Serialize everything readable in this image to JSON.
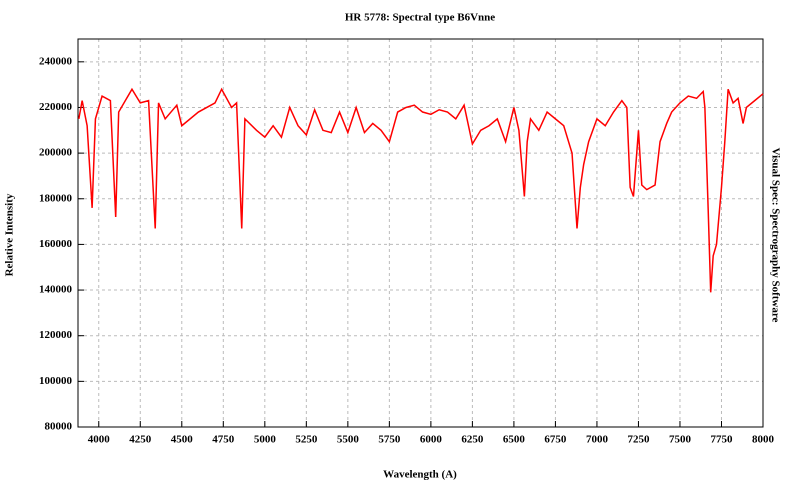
{
  "chart_data": {
    "type": "line",
    "title": "HR 5778: Spectral type B6Vnne",
    "x_label": "Wavelength (A)",
    "y_label": "Relative Intensity",
    "annotation": "Visual Spec: Spectrography Software",
    "xlim": [
      3875,
      8000
    ],
    "ylim": [
      80000,
      250000
    ],
    "xticks": [
      4000,
      4250,
      4500,
      4750,
      5000,
      5250,
      5500,
      5750,
      6000,
      6250,
      6500,
      6750,
      7000,
      7250,
      7500,
      7750,
      8000
    ],
    "yticks": [
      80000,
      100000,
      120000,
      140000,
      160000,
      180000,
      200000,
      220000,
      240000
    ],
    "grid": true,
    "x": [
      3880,
      3900,
      3930,
      3960,
      3980,
      4020,
      4070,
      4102,
      4120,
      4200,
      4250,
      4300,
      4340,
      4360,
      4400,
      4470,
      4500,
      4600,
      4700,
      4740,
      4800,
      4830,
      4861,
      4880,
      4950,
      5000,
      5050,
      5100,
      5150,
      5200,
      5250,
      5300,
      5350,
      5400,
      5450,
      5500,
      5550,
      5600,
      5650,
      5700,
      5750,
      5800,
      5850,
      5900,
      5950,
      6000,
      6050,
      6100,
      6150,
      6200,
      6250,
      6300,
      6350,
      6400,
      6450,
      6500,
      6530,
      6563,
      6580,
      6600,
      6650,
      6700,
      6750,
      6800,
      6850,
      6880,
      6900,
      6920,
      6950,
      7000,
      7050,
      7100,
      7150,
      7180,
      7200,
      7220,
      7250,
      7270,
      7300,
      7350,
      7380,
      7420,
      7450,
      7500,
      7550,
      7600,
      7640,
      7650,
      7670,
      7685,
      7700,
      7720,
      7750,
      7770,
      7790,
      7820,
      7850,
      7880,
      7900,
      7950,
      8000
    ],
    "series": [
      {
        "name": "HR 5778",
        "color": "#ff0000",
        "values": [
          215000,
          223000,
          212000,
          176000,
          215000,
          225000,
          223000,
          172000,
          218000,
          228000,
          222000,
          223000,
          167000,
          222000,
          215000,
          221000,
          212000,
          218000,
          222000,
          228000,
          220000,
          222000,
          167000,
          215000,
          210000,
          207000,
          212000,
          207000,
          220000,
          212000,
          208000,
          219000,
          210000,
          209000,
          218000,
          209000,
          220000,
          209000,
          213000,
          210000,
          205000,
          218000,
          220000,
          221000,
          218000,
          217000,
          219000,
          218000,
          215000,
          221000,
          204000,
          210000,
          212000,
          215000,
          205000,
          220000,
          210000,
          181000,
          205000,
          215000,
          210000,
          218000,
          215000,
          212000,
          200000,
          167000,
          185000,
          195000,
          205000,
          215000,
          212000,
          218000,
          223000,
          220000,
          185000,
          181000,
          210000,
          186000,
          184000,
          186000,
          205000,
          213000,
          218000,
          222000,
          225000,
          224000,
          227000,
          220000,
          175000,
          139000,
          155000,
          160000,
          185000,
          205000,
          228000,
          222000,
          224000,
          213000,
          220000,
          223000,
          226000
        ]
      }
    ]
  }
}
